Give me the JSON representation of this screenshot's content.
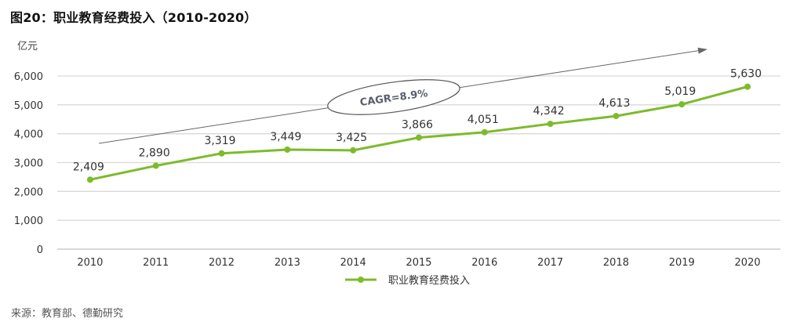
{
  "title": "图20：职业教育经费投入（2010-2020）",
  "unit": "亿元",
  "source": "来源：教育部、德勤研究",
  "annotation": {
    "text": "CAGR=8.9%"
  },
  "legend": {
    "label": "职业教育经费投入"
  },
  "colors": {
    "series": "#7dbb2b",
    "grid": "#d9d9d9",
    "arrow": "#666666"
  },
  "chart_data": {
    "type": "line",
    "title": "图20：职业教育经费投入（2010-2020）",
    "xlabel": "",
    "ylabel": "亿元",
    "categories": [
      "2010",
      "2011",
      "2012",
      "2013",
      "2014",
      "2015",
      "2016",
      "2017",
      "2018",
      "2019",
      "2020"
    ],
    "series": [
      {
        "name": "职业教育经费投入",
        "values": [
          2409,
          2890,
          3319,
          3449,
          3425,
          3866,
          4051,
          4342,
          4613,
          5019,
          5630
        ],
        "labels": [
          "2,409",
          "2,890",
          "3,319",
          "3,449",
          "3,425",
          "3,866",
          "4,051",
          "4,342",
          "4,613",
          "5,019",
          "5,630"
        ]
      }
    ],
    "yticks": [
      "0",
      "1,000",
      "2,000",
      "3,000",
      "4,000",
      "5,000",
      "6,000"
    ],
    "ylim": [
      0,
      6000
    ],
    "grid": true,
    "legend_position": "bottom",
    "annotations": [
      "CAGR=8.9%"
    ]
  }
}
